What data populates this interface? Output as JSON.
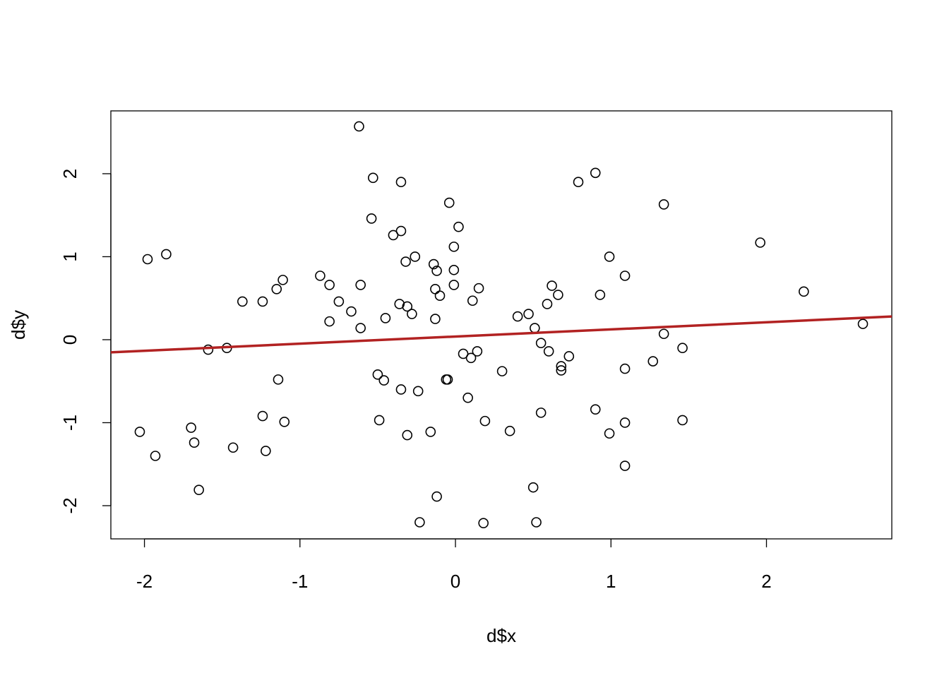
{
  "chart_data": {
    "type": "scatter",
    "x_label": "d$x",
    "y_label": "d$y",
    "x": [
      -0.62,
      -0.53,
      -0.35,
      0.9,
      0.79,
      -0.04,
      1.34,
      -0.54,
      0.02,
      -0.35,
      -0.4,
      -0.01,
      1.96,
      -1.98,
      -1.86,
      -0.26,
      -0.32,
      0.99,
      -0.14,
      -0.12,
      -0.01,
      -0.87,
      -1.11,
      1.09,
      -0.81,
      -0.61,
      -1.15,
      -0.13,
      -0.01,
      0.15,
      0.62,
      2.24,
      -0.1,
      0.93,
      0.66,
      -1.37,
      -1.24,
      -0.75,
      -0.36,
      -0.31,
      0.11,
      0.59,
      -0.67,
      -0.28,
      0.4,
      0.47,
      -0.81,
      -0.45,
      -0.13,
      -0.61,
      0.51,
      2.62,
      1.34,
      0.55,
      -1.59,
      -1.47,
      0.05,
      0.14,
      0.1,
      0.6,
      0.73,
      1.46,
      1.27,
      0.68,
      0.68,
      0.3,
      1.09,
      -0.5,
      -0.46,
      -1.14,
      -0.06,
      -0.05,
      -0.35,
      -0.24,
      0.08,
      0.55,
      0.9,
      -1.24,
      -1.1,
      -0.49,
      0.19,
      1.09,
      1.46,
      -2.03,
      -1.7,
      -1.68,
      -0.16,
      0.35,
      0.99,
      -0.31,
      -1.43,
      -1.22,
      -1.93,
      1.09,
      -1.65,
      0.5,
      -0.12,
      -0.23,
      0.18,
      0.52
    ],
    "y": [
      2.57,
      1.95,
      1.9,
      2.01,
      1.9,
      1.65,
      1.63,
      1.46,
      1.36,
      1.31,
      1.26,
      1.12,
      1.17,
      0.97,
      1.03,
      1.0,
      0.94,
      1.0,
      0.91,
      0.83,
      0.84,
      0.77,
      0.72,
      0.77,
      0.66,
      0.66,
      0.61,
      0.61,
      0.66,
      0.62,
      0.65,
      0.58,
      0.53,
      0.54,
      0.54,
      0.46,
      0.46,
      0.46,
      0.43,
      0.4,
      0.47,
      0.43,
      0.34,
      0.31,
      0.28,
      0.31,
      0.22,
      0.26,
      0.25,
      0.14,
      0.14,
      0.19,
      0.07,
      -0.04,
      -0.12,
      -0.1,
      -0.17,
      -0.14,
      -0.22,
      -0.14,
      -0.2,
      -0.1,
      -0.26,
      -0.32,
      -0.37,
      -0.38,
      -0.35,
      -0.42,
      -0.49,
      -0.48,
      -0.48,
      -0.48,
      -0.6,
      -0.62,
      -0.7,
      -0.88,
      -0.84,
      -0.92,
      -0.99,
      -0.97,
      -0.98,
      -1.0,
      -0.97,
      -1.11,
      -1.06,
      -1.24,
      -1.11,
      -1.1,
      -1.13,
      -1.15,
      -1.3,
      -1.34,
      -1.4,
      -1.52,
      -1.81,
      -1.78,
      -1.89,
      -2.2,
      -2.21,
      -2.2
    ],
    "point_color": "#000000",
    "fit_line": {
      "intercept": 0.038,
      "slope": 0.086,
      "color": "#b22222"
    },
    "xlim": [
      -2.216,
      2.806
    ],
    "ylim": [
      -2.4,
      2.757
    ],
    "xticks": [
      -2,
      -1,
      0,
      1,
      2
    ],
    "yticks": [
      -2,
      -1,
      0,
      1,
      2
    ]
  }
}
